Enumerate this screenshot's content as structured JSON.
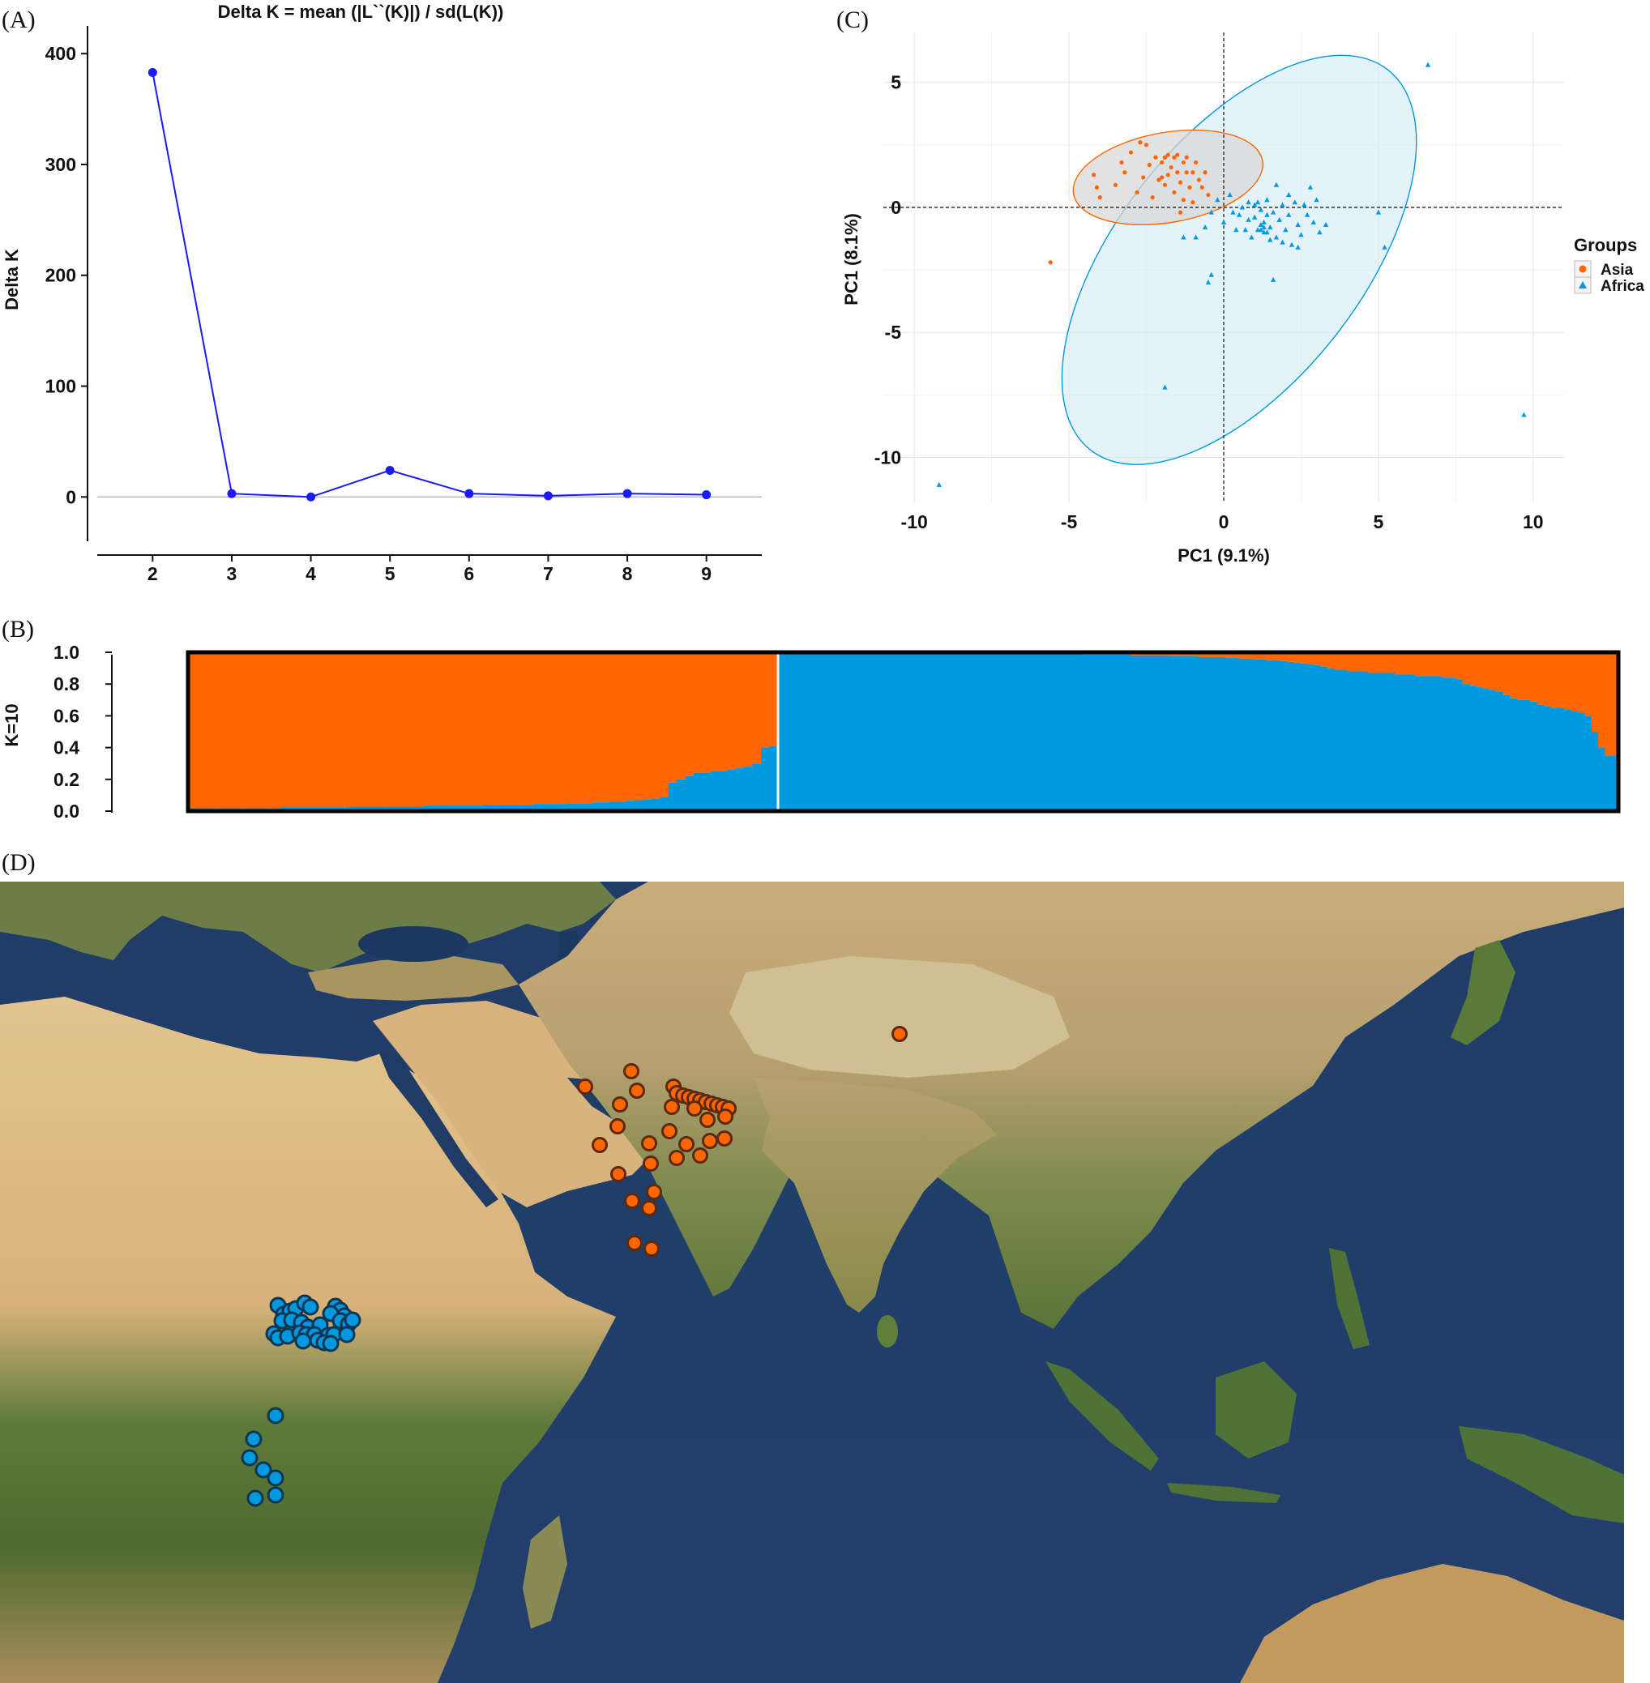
{
  "panels": {
    "a": "(A)",
    "b": "(B)",
    "c": "(C)",
    "d": "(D)"
  },
  "colors": {
    "deltak_line": "#1a1aff",
    "asia": "#ff6600",
    "africa": "#0099e0",
    "asia_ellipse_fill": "#d8d8d8",
    "africa_ellipse_fill": "#cde9f6"
  },
  "chart_data": [
    {
      "id": "delta-k",
      "type": "line",
      "title": "Delta K = mean (|L``(K)|) / sd(L(K))",
      "xlabel": "",
      "ylabel": "Delta K",
      "x": [
        2,
        3,
        4,
        5,
        6,
        7,
        8,
        9
      ],
      "y": [
        383,
        3,
        0,
        24,
        3,
        1,
        3,
        2
      ],
      "xticks": [
        "2",
        "3",
        "4",
        "5",
        "6",
        "7",
        "8",
        "9"
      ],
      "yticks": [
        "0",
        "100",
        "200",
        "300",
        "400"
      ],
      "ylim": [
        -40,
        425
      ],
      "xlim": [
        1.3,
        9.7
      ]
    },
    {
      "id": "structure-k10",
      "type": "bar",
      "ylabel": "K=10",
      "yticks": [
        "0.0",
        "0.2",
        "0.4",
        "0.6",
        "0.8",
        "1.0"
      ],
      "ylim": [
        0,
        1
      ],
      "groups": [
        "Asia",
        "Africa"
      ],
      "asia_blue_fraction": [
        0.02,
        0.02,
        0.02,
        0.02,
        0.02,
        0.02,
        0.02,
        0.02,
        0.02,
        0.02,
        0.02,
        0.025,
        0.025,
        0.025,
        0.025,
        0.025,
        0.025,
        0.025,
        0.025,
        0.03,
        0.03,
        0.03,
        0.03,
        0.03,
        0.03,
        0.03,
        0.03,
        0.03,
        0.035,
        0.035,
        0.035,
        0.035,
        0.035,
        0.035,
        0.035,
        0.04,
        0.04,
        0.04,
        0.04,
        0.04,
        0.04,
        0.045,
        0.045,
        0.045,
        0.045,
        0.05,
        0.05,
        0.05,
        0.055,
        0.055,
        0.06,
        0.06,
        0.065,
        0.07,
        0.075,
        0.08,
        0.09,
        0.18,
        0.2,
        0.22,
        0.24,
        0.24,
        0.25,
        0.25,
        0.26,
        0.27,
        0.28,
        0.3,
        0.4,
        0.41
      ],
      "africa_blue_fraction": [
        0.995,
        0.995,
        0.995,
        0.99,
        0.99,
        0.99,
        0.99,
        0.99,
        0.99,
        0.99,
        0.99,
        0.99,
        0.99,
        0.99,
        0.99,
        0.99,
        0.99,
        0.99,
        0.99,
        0.99,
        0.99,
        0.99,
        0.99,
        0.99,
        0.99,
        0.99,
        0.99,
        0.99,
        0.99,
        0.99,
        0.99,
        0.99,
        0.99,
        0.99,
        0.99,
        0.99,
        0.99,
        0.99,
        0.99,
        0.99,
        0.99,
        0.99,
        0.99,
        0.99,
        0.99,
        0.985,
        0.985,
        0.985,
        0.985,
        0.985,
        0.985,
        0.985,
        0.98,
        0.98,
        0.98,
        0.98,
        0.98,
        0.98,
        0.975,
        0.975,
        0.975,
        0.975,
        0.97,
        0.97,
        0.97,
        0.97,
        0.965,
        0.965,
        0.96,
        0.96,
        0.955,
        0.955,
        0.95,
        0.95,
        0.945,
        0.94,
        0.935,
        0.93,
        0.925,
        0.92,
        0.91,
        0.9,
        0.89,
        0.89,
        0.88,
        0.88,
        0.88,
        0.87,
        0.87,
        0.87,
        0.87,
        0.86,
        0.86,
        0.86,
        0.85,
        0.85,
        0.85,
        0.85,
        0.84,
        0.84,
        0.83,
        0.8,
        0.79,
        0.78,
        0.77,
        0.76,
        0.75,
        0.73,
        0.71,
        0.7,
        0.7,
        0.69,
        0.67,
        0.66,
        0.65,
        0.65,
        0.64,
        0.63,
        0.62,
        0.6,
        0.5,
        0.4,
        0.35,
        0.35
      ]
    },
    {
      "id": "pca",
      "type": "scatter",
      "xlabel": "PC1 (9.1%)",
      "ylabel": "PC1 (8.1%)",
      "xticks": [
        "-10",
        "-5",
        "0",
        "5",
        "10"
      ],
      "yticks": [
        "-10",
        "-5",
        "0",
        "5"
      ],
      "xlim": [
        -11,
        11
      ],
      "ylim": [
        -11.8,
        7
      ],
      "legend": {
        "title": "Groups",
        "position": "right"
      },
      "series": [
        {
          "name": "Asia",
          "points": [
            [
              -4.2,
              1.3
            ],
            [
              -4.1,
              0.8
            ],
            [
              -4.0,
              0.4
            ],
            [
              -3.5,
              0.9
            ],
            [
              -3.3,
              1.8
            ],
            [
              -3.2,
              1.4
            ],
            [
              -3.0,
              2.2
            ],
            [
              -2.8,
              0.6
            ],
            [
              -2.7,
              2.6
            ],
            [
              -2.6,
              1.2
            ],
            [
              -2.5,
              2.5
            ],
            [
              -2.4,
              1.7
            ],
            [
              -2.3,
              0.4
            ],
            [
              -2.2,
              2.0
            ],
            [
              -2.1,
              1.1
            ],
            [
              -2.0,
              1.2
            ],
            [
              -2.0,
              1.8
            ],
            [
              -1.9,
              0.9
            ],
            [
              -1.9,
              2.0
            ],
            [
              -1.8,
              1.3
            ],
            [
              -1.8,
              2.1
            ],
            [
              -1.7,
              1.6
            ],
            [
              -1.6,
              2.0
            ],
            [
              -1.6,
              0.6
            ],
            [
              -1.5,
              1.4
            ],
            [
              -1.5,
              2.1
            ],
            [
              -1.4,
              1.0
            ],
            [
              -1.3,
              1.8
            ],
            [
              -1.3,
              0.3
            ],
            [
              -1.2,
              1.4
            ],
            [
              -1.2,
              2.0
            ],
            [
              -1.1,
              0.8
            ],
            [
              -1.0,
              1.4
            ],
            [
              -1.0,
              0.2
            ],
            [
              -0.9,
              1.8
            ],
            [
              -0.8,
              1.1
            ],
            [
              -0.7,
              0.8
            ],
            [
              -0.6,
              1.4
            ],
            [
              -0.5,
              0.5
            ],
            [
              -1.4,
              -0.2
            ],
            [
              -5.6,
              -2.2
            ]
          ]
        },
        {
          "name": "Africa",
          "points": [
            [
              0.2,
              0.5
            ],
            [
              0.3,
              -0.2
            ],
            [
              0.4,
              -0.9
            ],
            [
              0.5,
              -0.3
            ],
            [
              0.6,
              0.0
            ],
            [
              0.7,
              -0.9
            ],
            [
              0.8,
              0.2
            ],
            [
              0.8,
              -0.5
            ],
            [
              0.9,
              -1.2
            ],
            [
              1.0,
              0.1
            ],
            [
              1.0,
              -0.4
            ],
            [
              1.1,
              -0.9
            ],
            [
              1.1,
              0.2
            ],
            [
              1.2,
              -0.7
            ],
            [
              1.2,
              -0.1
            ],
            [
              1.3,
              -1.0
            ],
            [
              1.3,
              -0.6
            ],
            [
              1.4,
              0.3
            ],
            [
              1.4,
              -0.3
            ],
            [
              1.5,
              -1.3
            ],
            [
              1.5,
              -0.8
            ],
            [
              1.6,
              -0.2
            ],
            [
              1.7,
              0.9
            ],
            [
              1.7,
              -1.2
            ],
            [
              1.8,
              -0.5
            ],
            [
              1.9,
              0.1
            ],
            [
              1.9,
              -1.4
            ],
            [
              2.0,
              -0.9
            ],
            [
              2.1,
              0.5
            ],
            [
              2.1,
              -0.3
            ],
            [
              2.2,
              -1.5
            ],
            [
              2.3,
              0.2
            ],
            [
              2.4,
              -0.7
            ],
            [
              2.5,
              -1.1
            ],
            [
              2.6,
              0.1
            ],
            [
              2.7,
              -0.3
            ],
            [
              2.8,
              0.8
            ],
            [
              2.9,
              -0.6
            ],
            [
              3.0,
              0.3
            ],
            [
              3.1,
              -1.0
            ],
            [
              3.3,
              -0.7
            ],
            [
              -0.6,
              -0.8
            ],
            [
              -0.4,
              -0.2
            ],
            [
              -0.2,
              0.3
            ],
            [
              0.0,
              -0.6
            ],
            [
              -1.3,
              -1.2
            ],
            [
              -0.4,
              -2.7
            ],
            [
              -0.9,
              -1.2
            ],
            [
              1.6,
              -2.9
            ],
            [
              2.4,
              -1.6
            ],
            [
              5.0,
              -0.2
            ],
            [
              5.2,
              -1.6
            ],
            [
              6.6,
              5.7
            ],
            [
              9.7,
              -8.3
            ],
            [
              -9.2,
              -11.1
            ],
            [
              -1.9,
              -7.2
            ],
            [
              -0.5,
              -3.0
            ],
            [
              1.3,
              -0.8
            ],
            [
              1.2,
              -0.9
            ],
            [
              1.4,
              -1.0
            ]
          ]
        }
      ],
      "ellipses": [
        {
          "group": "Asia",
          "cx": -1.8,
          "cy": 1.2,
          "rx": 3.1,
          "ry": 1.8,
          "angle": 10
        },
        {
          "group": "Africa",
          "cx": 0.5,
          "cy": -2.1,
          "rx": 7.8,
          "ry": 4.9,
          "angle": 52
        }
      ]
    }
  ],
  "map": {
    "asia_sites": [
      [
        722,
        1017
      ],
      [
        779,
        998
      ],
      [
        786,
        1022
      ],
      [
        831,
        1017
      ],
      [
        835,
        1025
      ],
      [
        843,
        1028
      ],
      [
        850,
        1030
      ],
      [
        857,
        1032
      ],
      [
        864,
        1034
      ],
      [
        871,
        1036
      ],
      [
        878,
        1038
      ],
      [
        885,
        1040
      ],
      [
        892,
        1042
      ],
      [
        899,
        1044
      ],
      [
        765,
        1039
      ],
      [
        829,
        1042
      ],
      [
        857,
        1044
      ],
      [
        873,
        1058
      ],
      [
        895,
        1054
      ],
      [
        762,
        1066
      ],
      [
        801,
        1087
      ],
      [
        826,
        1072
      ],
      [
        847,
        1088
      ],
      [
        876,
        1084
      ],
      [
        894,
        1081
      ],
      [
        740,
        1089
      ],
      [
        803,
        1112
      ],
      [
        835,
        1105
      ],
      [
        864,
        1102
      ],
      [
        763,
        1125
      ],
      [
        807,
        1147
      ],
      [
        780,
        1158
      ],
      [
        801,
        1167
      ],
      [
        783,
        1210
      ],
      [
        804,
        1217
      ],
      [
        1110,
        952
      ]
    ],
    "africa_sites": [
      [
        343,
        1287
      ],
      [
        350,
        1298
      ],
      [
        358,
        1294
      ],
      [
        365,
        1291
      ],
      [
        376,
        1284
      ],
      [
        383,
        1289
      ],
      [
        414,
        1288
      ],
      [
        420,
        1293
      ],
      [
        425,
        1300
      ],
      [
        408,
        1297
      ],
      [
        348,
        1306
      ],
      [
        360,
        1305
      ],
      [
        372,
        1308
      ],
      [
        380,
        1314
      ],
      [
        395,
        1311
      ],
      [
        420,
        1306
      ],
      [
        430,
        1310
      ],
      [
        435,
        1305
      ],
      [
        338,
        1322
      ],
      [
        343,
        1327
      ],
      [
        355,
        1325
      ],
      [
        370,
        1321
      ],
      [
        378,
        1323
      ],
      [
        388,
        1323
      ],
      [
        405,
        1324
      ],
      [
        412,
        1323
      ],
      [
        428,
        1323
      ],
      [
        374,
        1331
      ],
      [
        392,
        1330
      ],
      [
        400,
        1333
      ],
      [
        408,
        1334
      ],
      [
        340,
        1423
      ],
      [
        313,
        1452
      ],
      [
        308,
        1475
      ],
      [
        325,
        1490
      ],
      [
        340,
        1500
      ],
      [
        315,
        1525
      ],
      [
        340,
        1521
      ]
    ]
  }
}
